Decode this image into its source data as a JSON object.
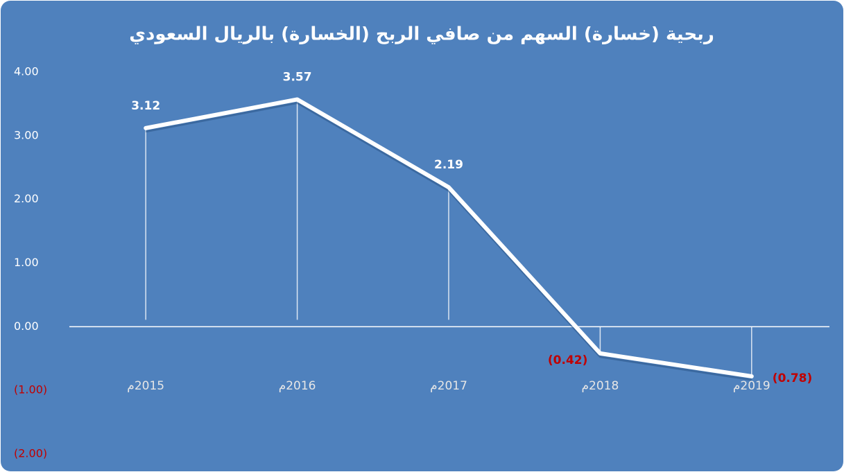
{
  "chart_data": {
    "type": "line",
    "title": "ربحية (خسارة) السهم من صافي الربح (الخسارة) بالريال السعودي",
    "categories": [
      "2015م",
      "2016م",
      "2017م",
      "2018م",
      "2019م"
    ],
    "values": [
      3.12,
      3.57,
      2.19,
      -0.42,
      -0.78
    ],
    "value_labels": [
      "3.12",
      "3.57",
      "2.19",
      "(0.42)",
      "(0.78)"
    ],
    "color": "#ffffff",
    "negative_color": "#c00000",
    "background": "#4f81bd",
    "ylim": [
      -2,
      4
    ],
    "yticks": [
      {
        "value": 4,
        "label": "4.00"
      },
      {
        "value": 3,
        "label": "3.00"
      },
      {
        "value": 2,
        "label": "2.00"
      },
      {
        "value": 1,
        "label": "1.00"
      },
      {
        "value": 0,
        "label": "0.00"
      },
      {
        "value": -1,
        "label": "(1.00)"
      },
      {
        "value": -2,
        "label": "(2.00)"
      }
    ]
  }
}
